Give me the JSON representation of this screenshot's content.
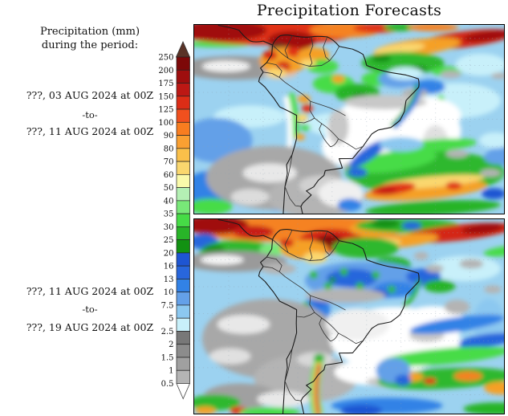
{
  "title": "Precipitation Forecasts",
  "sidebar": {
    "heading_line1": "Precipitation (mm)",
    "heading_line2": "during the period:",
    "periods": [
      {
        "start": "???, 03 AUG 2024 at 00Z",
        "separator": "-to-",
        "end": "???, 11 AUG 2024 at 00Z"
      },
      {
        "start": "???, 11 AUG 2024 at 00Z",
        "separator": "-to-",
        "end": "???, 19 AUG 2024 at 00Z"
      }
    ]
  },
  "colorbar": {
    "over_color": "#5a3327",
    "under_color": "#ffffff",
    "bottom_label": "0.5",
    "segments": [
      {
        "label": "250",
        "color": "#7d0808"
      },
      {
        "label": "200",
        "color": "#9e0e0e"
      },
      {
        "label": "175",
        "color": "#bc1814"
      },
      {
        "label": "150",
        "color": "#dc2d16"
      },
      {
        "label": "125",
        "color": "#f0501e"
      },
      {
        "label": "100",
        "color": "#f87d20"
      },
      {
        "label": "90",
        "color": "#faa032"
      },
      {
        "label": "80",
        "color": "#fac04a"
      },
      {
        "label": "70",
        "color": "#fad76e"
      },
      {
        "label": "60",
        "color": "#fafaaa"
      },
      {
        "label": "50",
        "color": "#b4f0b4"
      },
      {
        "label": "40",
        "color": "#78e878"
      },
      {
        "label": "35",
        "color": "#46dc46"
      },
      {
        "label": "30",
        "color": "#28b428"
      },
      {
        "label": "25",
        "color": "#129112"
      },
      {
        "label": "20",
        "color": "#1e55d2"
      },
      {
        "label": "16",
        "color": "#2866dc"
      },
      {
        "label": "13",
        "color": "#3282e6"
      },
      {
        "label": "10",
        "color": "#64a0e8"
      },
      {
        "label": "7.5",
        "color": "#8cc8f0"
      },
      {
        "label": "5",
        "color": "#c8f0fa"
      },
      {
        "label": "2.5",
        "color": "#787878"
      },
      {
        "label": "2",
        "color": "#8c8c8c"
      },
      {
        "label": "1.5",
        "color": "#a0a0a0"
      },
      {
        "label": "1",
        "color": "#b4b4b4"
      }
    ]
  }
}
